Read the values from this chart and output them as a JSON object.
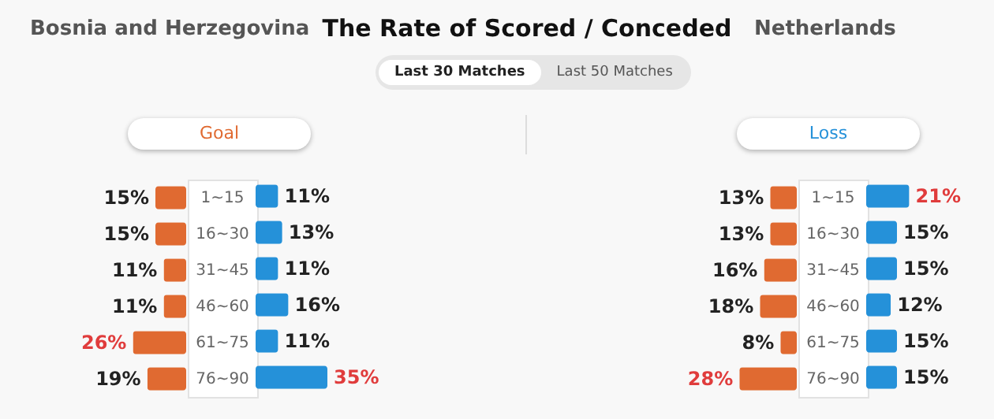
{
  "chart_data": [
    {
      "type": "bar",
      "orientation": "horizontal",
      "title": "Goal",
      "annotations": [
        "Bosnia and Herzegovina",
        "The Rate of Scored / Conceded",
        "Last 30 Matches",
        "Last 50 Matches"
      ],
      "categories": [
        "1~15",
        "16~30",
        "31~45",
        "46~60",
        "61~75",
        "76~90"
      ],
      "series": [
        {
          "color": "#e06a31",
          "values": [
            15,
            15,
            11,
            11,
            26,
            19
          ],
          "value_labels": [
            "15%",
            "15%",
            "11%",
            "11%",
            "26%",
            "19%"
          ]
        }
      ]
    },
    {
      "type": "bar",
      "orientation": "horizontal",
      "annotations": [
        "Netherlands"
      ],
      "categories": [
        "1~15",
        "16~30",
        "31~45",
        "46~60",
        "61~75",
        "76~90"
      ],
      "tick_labels": false,
      "series": [
        {
          "color": "#2591d9",
          "values": [
            11,
            13,
            11,
            16,
            11,
            35
          ],
          "value_labels": [
            "11%",
            "13%",
            "11%",
            "16%",
            "11%",
            "35%"
          ]
        }
      ]
    },
    {
      "type": "bar",
      "orientation": "horizontal",
      "title": "Loss",
      "categories": [
        "1~15",
        "16~30",
        "31~45",
        "46~60",
        "61~75",
        "76~90"
      ],
      "series": [
        {
          "color": "#e06a31",
          "values": [
            13,
            13,
            16,
            18,
            8,
            28
          ],
          "value_labels": [
            "13%",
            "13%",
            "16%",
            "18%",
            "8%",
            "28%"
          ]
        }
      ]
    },
    {
      "type": "bar",
      "orientation": "horizontal",
      "categories": [
        "1~15",
        "16~30",
        "31~45",
        "46~60",
        "61~75",
        "76~90"
      ],
      "tick_labels": false,
      "series": [
        {
          "color": "#2591d9",
          "values": [
            21,
            15,
            15,
            12,
            15,
            15
          ],
          "value_labels": [
            "21%",
            "15%",
            "15%",
            "12%",
            "15%",
            "15%"
          ]
        }
      ]
    }
  ]
}
